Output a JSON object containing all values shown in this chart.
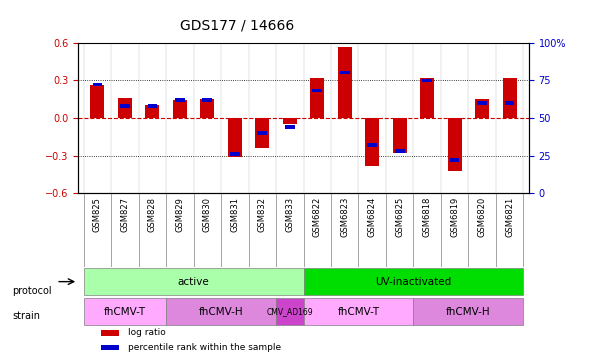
{
  "title": "GDS177 / 14666",
  "samples": [
    "GSM825",
    "GSM827",
    "GSM828",
    "GSM829",
    "GSM830",
    "GSM831",
    "GSM832",
    "GSM833",
    "GSM6822",
    "GSM6823",
    "GSM6824",
    "GSM6825",
    "GSM6818",
    "GSM6819",
    "GSM6820",
    "GSM6821"
  ],
  "log_ratio": [
    0.26,
    0.16,
    0.1,
    0.14,
    0.15,
    -0.31,
    -0.24,
    -0.05,
    0.32,
    0.57,
    -0.38,
    -0.28,
    0.32,
    -0.42,
    0.15,
    0.32
  ],
  "pct_rank_raw": [
    72,
    58,
    58,
    62,
    62,
    26,
    40,
    44,
    68,
    80,
    32,
    28,
    75,
    22,
    60,
    60
  ],
  "ylim": [
    -0.6,
    0.6
  ],
  "y_ticks_left": [
    -0.6,
    -0.3,
    0.0,
    0.3,
    0.6
  ],
  "y_ticks_right": [
    0,
    25,
    50,
    75,
    100
  ],
  "bar_width": 0.5,
  "log_ratio_color": "#cc0000",
  "pct_rank_color": "#0000cc",
  "zero_line_color": "#cc0000",
  "grid_color": "#000000",
  "protocol_groups": [
    {
      "label": "active",
      "start": 0,
      "end": 7,
      "color": "#aaffaa"
    },
    {
      "label": "UV-inactivated",
      "start": 8,
      "end": 15,
      "color": "#00dd00"
    }
  ],
  "strain_groups": [
    {
      "label": "fhCMV-T",
      "start": 0,
      "end": 2,
      "color": "#ffaaff"
    },
    {
      "label": "fhCMV-H",
      "start": 3,
      "end": 6,
      "color": "#dd88dd"
    },
    {
      "label": "CMV_AD169",
      "start": 7,
      "end": 7,
      "color": "#cc44cc"
    },
    {
      "label": "fhCMV-T",
      "start": 8,
      "end": 11,
      "color": "#ffaaff"
    },
    {
      "label": "fhCMV-H",
      "start": 12,
      "end": 15,
      "color": "#dd88dd"
    }
  ],
  "legend_items": [
    {
      "label": "log ratio",
      "color": "#cc0000"
    },
    {
      "label": "percentile rank within the sample",
      "color": "#0000cc"
    }
  ]
}
